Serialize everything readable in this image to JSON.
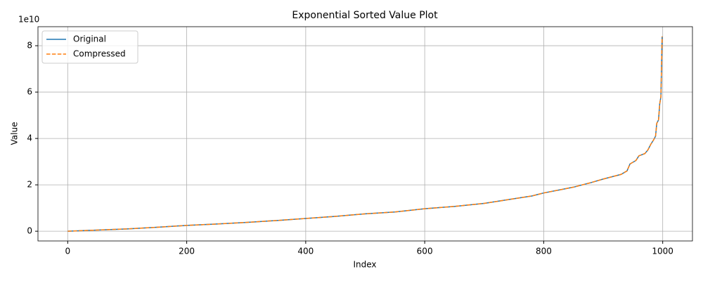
{
  "chart_data": {
    "type": "line",
    "title": "Exponential Sorted Value Plot",
    "x_label": "Index",
    "y_label": "Value",
    "y_offset_label": "1e10",
    "x": [
      0,
      50,
      100,
      150,
      200,
      250,
      300,
      350,
      400,
      450,
      500,
      550,
      600,
      650,
      700,
      750,
      780,
      800,
      830,
      850,
      880,
      900,
      930,
      940,
      945,
      955,
      960,
      970,
      975,
      980,
      985,
      988,
      990,
      993,
      995,
      997,
      999
    ],
    "series": [
      {
        "name": "Original",
        "color": "#1f77b4",
        "dash": false,
        "values": [
          0,
          0.05,
          0.1,
          0.17,
          0.25,
          0.31,
          0.38,
          0.46,
          0.55,
          0.64,
          0.75,
          0.83,
          0.97,
          1.07,
          1.2,
          1.4,
          1.52,
          1.65,
          1.8,
          1.9,
          2.1,
          2.25,
          2.45,
          2.6,
          2.9,
          3.05,
          3.25,
          3.35,
          3.5,
          3.75,
          3.95,
          4.1,
          4.65,
          4.8,
          5.5,
          5.8,
          8.4
        ]
      },
      {
        "name": "Compressed",
        "color": "#ff7f0e",
        "dash": true,
        "values": [
          0,
          0.05,
          0.1,
          0.17,
          0.25,
          0.31,
          0.38,
          0.46,
          0.55,
          0.64,
          0.75,
          0.83,
          0.97,
          1.07,
          1.2,
          1.4,
          1.52,
          1.65,
          1.8,
          1.9,
          2.1,
          2.25,
          2.45,
          2.6,
          2.9,
          3.05,
          3.25,
          3.35,
          3.5,
          3.75,
          3.95,
          4.1,
          4.65,
          4.8,
          5.5,
          5.8,
          8.4
        ]
      }
    ],
    "xlim": [
      -50,
      1050
    ],
    "xticks": [
      0,
      200,
      400,
      600,
      800,
      1000
    ],
    "ylim": [
      -0.42,
      8.82
    ],
    "yticks": [
      0,
      2,
      4,
      6,
      8
    ],
    "grid": true,
    "legend": "upper-left"
  }
}
